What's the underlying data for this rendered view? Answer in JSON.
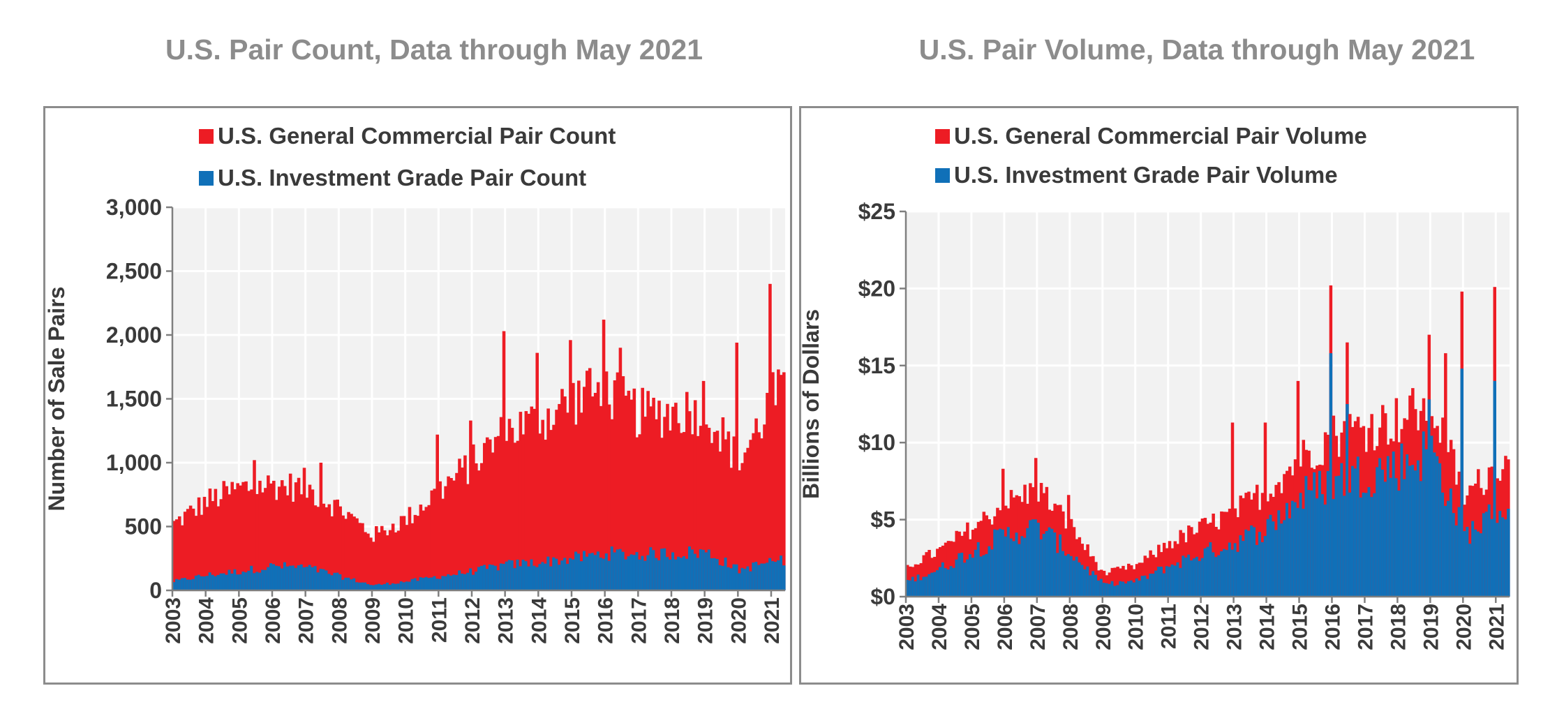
{
  "colors": {
    "general": "#ed1c24",
    "investment": "#1070b8",
    "plot_bg": "#f2f2f2",
    "grid": "#ffffff",
    "axis": "#7f7f7f"
  },
  "chart_data": [
    {
      "type": "bar",
      "stacked": true,
      "title": "U.S. Pair Count, Data through May 2021",
      "ylabel": "Number of Sale Pairs",
      "xlabel": "",
      "ylim": [
        0,
        3000
      ],
      "yticks": [
        {
          "value": 0,
          "label": "0"
        },
        {
          "value": 500,
          "label": "500"
        },
        {
          "value": 1000,
          "label": "1,000"
        },
        {
          "value": 1500,
          "label": "1,500"
        },
        {
          "value": 2000,
          "label": "2,000"
        },
        {
          "value": 2500,
          "label": "2,500"
        },
        {
          "value": 3000,
          "label": "3,000"
        }
      ],
      "xticks": [
        "2003",
        "2004",
        "2005",
        "2006",
        "2007",
        "2008",
        "2009",
        "2010",
        "2011",
        "2012",
        "2013",
        "2014",
        "2015",
        "2016",
        "2017",
        "2018",
        "2019",
        "2020",
        "2021"
      ],
      "grid": true,
      "legend": "top",
      "series": [
        {
          "name": "U.S. General Commercial Pair Count",
          "color_key": "general",
          "annual_values": [
            520,
            700,
            800,
            830,
            800,
            640,
            430,
            560,
            790,
            1000,
            1250,
            1330,
            1500,
            1550,
            1380,
            1400,
            1420,
            1000,
            1500
          ],
          "peaks": [
            {
              "x": 2012.95,
              "value": 2030
            },
            {
              "x": 2013.95,
              "value": 1860
            },
            {
              "x": 2014.95,
              "value": 1960
            },
            {
              "x": 2015.95,
              "value": 2120
            },
            {
              "x": 2016.45,
              "value": 1900
            },
            {
              "x": 2019.95,
              "value": 1940
            },
            {
              "x": 2020.95,
              "value": 2400
            },
            {
              "x": 2021.2,
              "value": 1730
            },
            {
              "x": 2010.95,
              "value": 1220
            },
            {
              "x": 2011.95,
              "value": 1330
            },
            {
              "x": 2005.45,
              "value": 1020
            },
            {
              "x": 2006.95,
              "value": 960
            },
            {
              "x": 2007.45,
              "value": 1000
            },
            {
              "x": 2015.45,
              "value": 1720
            },
            {
              "x": 2018.95,
              "value": 1640
            }
          ]
        },
        {
          "name": "U.S. Investment Grade Pair Count",
          "color_key": "investment",
          "annual_values": [
            70,
            120,
            150,
            190,
            180,
            110,
            40,
            70,
            110,
            150,
            200,
            220,
            250,
            290,
            280,
            290,
            300,
            160,
            230
          ]
        }
      ]
    },
    {
      "type": "bar",
      "stacked": true,
      "title": "U.S. Pair Volume, Data through May 2021",
      "ylabel": "Billions of Dollars",
      "xlabel": "",
      "ylim": [
        0,
        25
      ],
      "yticks": [
        {
          "value": 0,
          "label": "$0"
        },
        {
          "value": 5,
          "label": "$5"
        },
        {
          "value": 10,
          "label": "$10"
        },
        {
          "value": 15,
          "label": "$15"
        },
        {
          "value": 20,
          "label": "$20"
        },
        {
          "value": 25,
          "label": "$25"
        }
      ],
      "xticks": [
        "2003",
        "2004",
        "2005",
        "2006",
        "2007",
        "2008",
        "2009",
        "2010",
        "2011",
        "2012",
        "2013",
        "2014",
        "2015",
        "2016",
        "2017",
        "2018",
        "2019",
        "2020",
        "2021"
      ],
      "grid": true,
      "legend": "top",
      "series": [
        {
          "name": "U.S. General Commercial Pair Volume",
          "color_key": "general",
          "annual_values": [
            2.0,
            3.0,
            4.5,
            6.0,
            7.0,
            4.5,
            1.5,
            2.0,
            3.5,
            4.5,
            5.5,
            7.0,
            9.0,
            10.5,
            11.0,
            11.5,
            12.5,
            6.5,
            8.5
          ],
          "peaks": [
            {
              "x": 2015.95,
              "value": 20.2
            },
            {
              "x": 2019.95,
              "value": 19.8
            },
            {
              "x": 2020.95,
              "value": 20.1
            },
            {
              "x": 2016.45,
              "value": 16.5
            },
            {
              "x": 2018.95,
              "value": 17.0
            },
            {
              "x": 2014.95,
              "value": 14.0
            },
            {
              "x": 2012.95,
              "value": 11.3
            },
            {
              "x": 2013.95,
              "value": 11.3
            },
            {
              "x": 2006.95,
              "value": 9.0
            },
            {
              "x": 2005.95,
              "value": 8.3
            },
            {
              "x": 2007.95,
              "value": 6.6
            },
            {
              "x": 2019.45,
              "value": 15.8
            }
          ]
        },
        {
          "name": "U.S. Investment Grade Pair Volume",
          "color_key": "investment",
          "annual_values": [
            1.0,
            1.8,
            3.0,
            4.0,
            4.5,
            2.8,
            0.8,
            1.0,
            2.0,
            2.8,
            3.5,
            4.5,
            6.5,
            7.5,
            8.0,
            8.5,
            9.5,
            4.0,
            5.5
          ],
          "peaks": [
            {
              "x": 2015.95,
              "value": 15.8
            },
            {
              "x": 2019.95,
              "value": 14.8
            },
            {
              "x": 2020.95,
              "value": 14.0
            },
            {
              "x": 2016.45,
              "value": 12.5
            },
            {
              "x": 2018.95,
              "value": 12.8
            }
          ]
        }
      ]
    }
  ]
}
